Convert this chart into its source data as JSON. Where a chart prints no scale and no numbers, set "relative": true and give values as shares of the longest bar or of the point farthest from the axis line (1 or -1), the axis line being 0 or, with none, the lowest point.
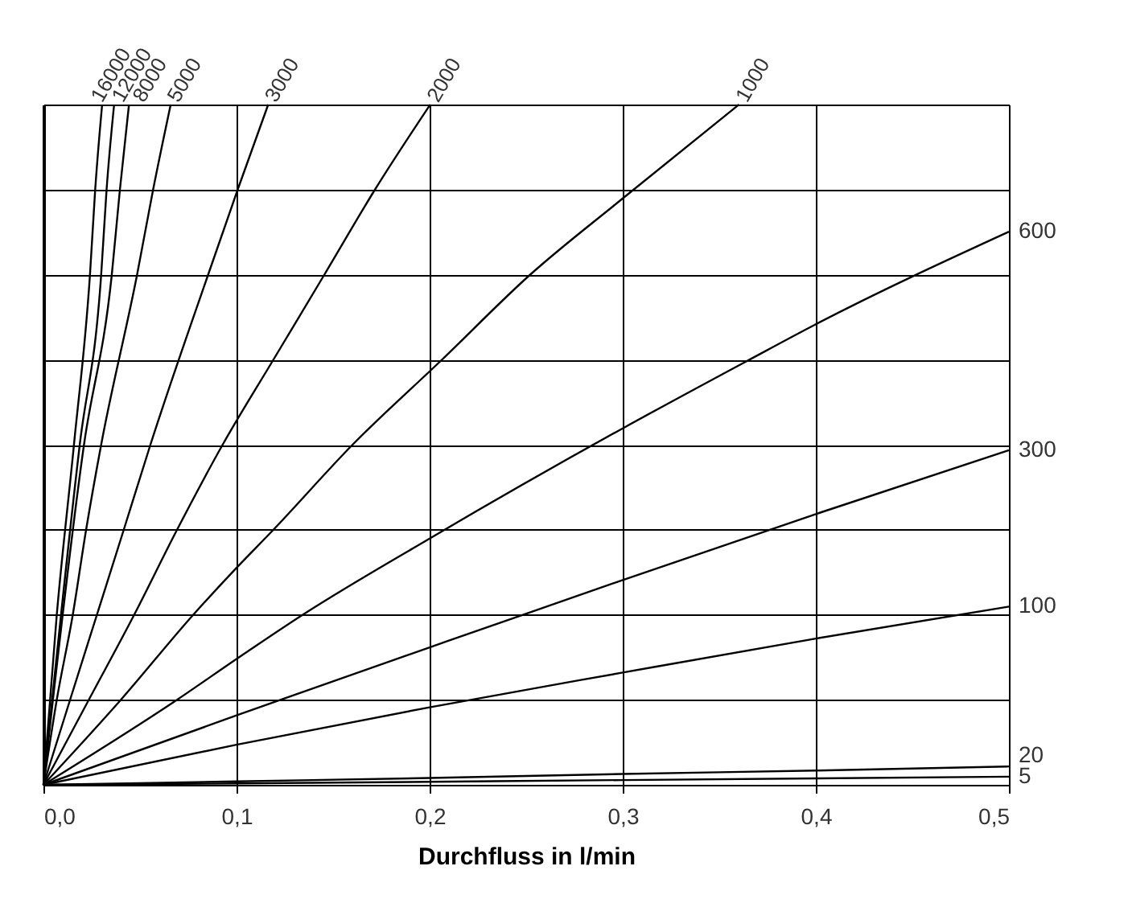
{
  "chart_data": {
    "type": "line",
    "relative": true,
    "xlabel": "Durchfluss in l/min",
    "xlim": [
      0,
      0.5
    ],
    "xticks": [
      {
        "value": 0,
        "label": "0,0"
      },
      {
        "value": 0.1,
        "label": "0,1"
      },
      {
        "value": 0.2,
        "label": "0,2"
      },
      {
        "value": 0.3,
        "label": "0,3"
      },
      {
        "value": 0.4,
        "label": "0,4"
      },
      {
        "value": 0.5,
        "label": "0,5"
      }
    ],
    "tick_labels": "x",
    "grid": true,
    "legend": false,
    "line_style": "solid",
    "series": [
      {
        "name": "16000",
        "color": "#000000",
        "x": [
          0,
          0.0069,
          0.0158,
          0.0241,
          0.0268,
          0.0304
        ],
        "values": [
          0,
          0.25,
          0.5,
          0.75,
          0.875,
          1
        ]
      },
      {
        "name": "12000",
        "color": "#000000",
        "x": [
          0,
          0.0188,
          0.0299,
          0.0327,
          0.0366
        ],
        "values": [
          0,
          0.5,
          0.75,
          0.875,
          1
        ]
      },
      {
        "name": "8000",
        "color": "#000000",
        "x": [
          0,
          0.021,
          0.0354,
          0.0396,
          0.0443
        ],
        "values": [
          0,
          0.5,
          0.75,
          0.875,
          1
        ]
      },
      {
        "name": "5000",
        "color": "#000000",
        "x": [
          0,
          0.0069,
          0.0152,
          0.0221,
          0.0299,
          0.0485,
          0.0568,
          0.0659
        ],
        "values": [
          0,
          0.125,
          0.25,
          0.375,
          0.5,
          0.75,
          0.875,
          1
        ]
      },
      {
        "name": "3000",
        "color": "#000000",
        "x": [
          0,
          0.0138,
          0.0277,
          0.0416,
          0.0554,
          0.0853,
          0.1006,
          0.1164
        ],
        "values": [
          0,
          0.125,
          0.25,
          0.375,
          0.5,
          0.75,
          0.875,
          1
        ]
      },
      {
        "name": "2000",
        "color": "#000000",
        "x": [
          0,
          0.0235,
          0.047,
          0.0692,
          0.0928,
          0.1191,
          0.1455,
          0.1717,
          0.2003
        ],
        "values": [
          0,
          0.125,
          0.25,
          0.375,
          0.5,
          0.625,
          0.75,
          0.875,
          1
        ]
      },
      {
        "name": "1000",
        "color": "#000000",
        "x": [
          0,
          0.0401,
          0.0776,
          0.1,
          0.1191,
          0.1601,
          0.2064,
          0.2521,
          0.3,
          0.3602
        ],
        "values": [
          0,
          0.125,
          0.25,
          0.319,
          0.375,
          0.5,
          0.625,
          0.75,
          0.862,
          1
        ]
      },
      {
        "name": "600",
        "color": "#000000",
        "x": [
          0,
          0.0692,
          0.1,
          0.1343,
          0.2,
          0.3,
          0.365,
          0.4,
          0.5
        ],
        "values": [
          0,
          0.125,
          0.185,
          0.25,
          0.362,
          0.524,
          0.624,
          0.677,
          0.813
        ]
      },
      {
        "name": "300",
        "color": "#000000",
        "x": [
          0,
          0.1,
          0.1218,
          0.2,
          0.3,
          0.4,
          0.5
        ],
        "values": [
          0,
          0.102,
          0.124,
          0.202,
          0.301,
          0.398,
          0.492
        ]
      },
      {
        "name": "100",
        "color": "#000000",
        "x": [
          0,
          0.1,
          0.2,
          0.3,
          0.4,
          0.5
        ],
        "values": [
          0,
          0.059,
          0.114,
          0.165,
          0.215,
          0.262
        ]
      },
      {
        "name": "20",
        "color": "#000000",
        "x": [
          0,
          0.1,
          0.2,
          0.3,
          0.4,
          0.5
        ],
        "values": [
          0,
          0.005,
          0.01,
          0.016,
          0.021,
          0.027
        ]
      },
      {
        "name": "5",
        "color": "#000000",
        "x": [
          0,
          0.1,
          0.3,
          0.5
        ],
        "values": [
          0,
          0.002,
          0.007,
          0.012
        ]
      }
    ]
  }
}
